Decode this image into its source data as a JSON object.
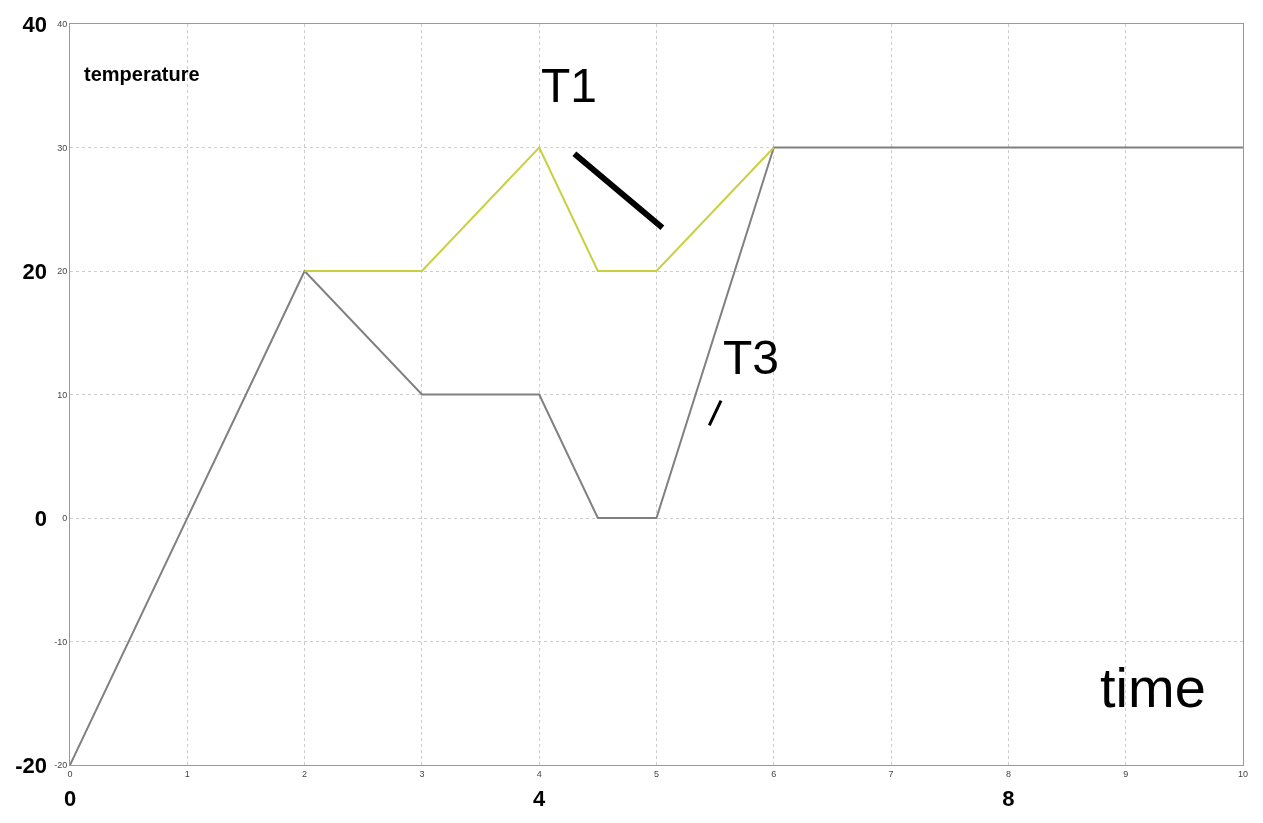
{
  "chart_data": {
    "type": "line",
    "xlabel": "time",
    "ylabel": "temperature",
    "x": [
      0,
      2,
      3,
      4,
      4.5,
      5,
      6,
      10
    ],
    "series": [
      {
        "name": "T3",
        "color": "#808080",
        "values": [
          -20,
          20,
          10,
          10,
          0,
          0,
          30,
          30
        ]
      },
      {
        "name": "T1",
        "color": "#c8d040",
        "x": [
          2,
          3,
          4,
          4.5,
          5,
          6
        ],
        "values": [
          20,
          20,
          30,
          20,
          20,
          30
        ]
      }
    ],
    "xlim": [
      0,
      10
    ],
    "xticks": [
      0,
      1,
      2,
      3,
      4,
      5,
      6,
      7,
      8,
      9,
      10
    ],
    "ylim": [
      -20,
      40
    ],
    "yticks": [
      -20,
      -10,
      0,
      10,
      20,
      30,
      40
    ],
    "x2lim": [
      0,
      10
    ],
    "x2ticks": [
      0,
      4,
      8
    ],
    "y2lim": [
      -20,
      40
    ],
    "y2ticks": [
      -20,
      0,
      20,
      40
    ],
    "grid": true,
    "line_style": "solid",
    "marker": "none",
    "legend": false
  }
}
